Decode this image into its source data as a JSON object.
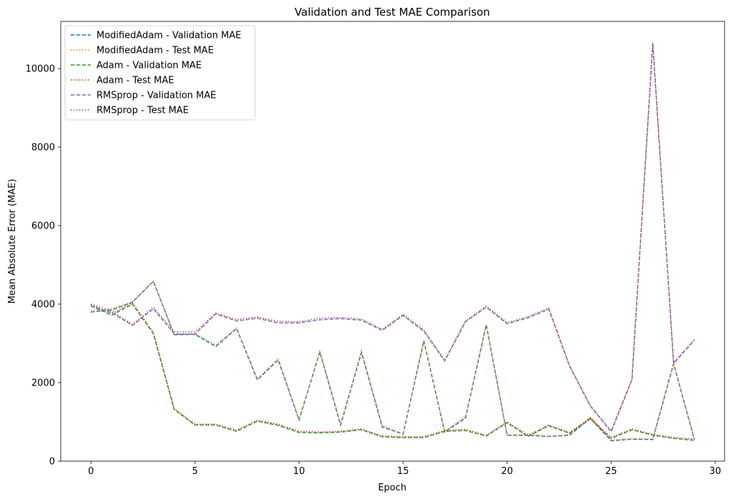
{
  "chart_data": {
    "type": "line",
    "title": "Validation and Test MAE Comparison",
    "xlabel": "Epoch",
    "ylabel": "Mean Absolute Error (MAE)",
    "xlim": [
      -1.45,
      30.45
    ],
    "ylim": [
      0,
      11200
    ],
    "xticks": [
      0,
      5,
      10,
      15,
      20,
      25,
      30
    ],
    "yticks": [
      0,
      2000,
      4000,
      6000,
      8000,
      10000
    ],
    "grid": false,
    "legend_position": "top-left",
    "x": [
      0,
      1,
      2,
      3,
      4,
      5,
      6,
      7,
      8,
      9,
      10,
      11,
      12,
      13,
      14,
      15,
      16,
      17,
      18,
      19,
      20,
      21,
      22,
      23,
      24,
      25,
      26,
      27,
      28,
      29
    ],
    "series": [
      {
        "name": "ModifiedAdam - Validation MAE",
        "color": "#1f77b4",
        "dash": "dashed",
        "values": [
          3800,
          3850,
          4050,
          4580,
          3220,
          3230,
          2920,
          3380,
          2070,
          2580,
          1050,
          2780,
          920,
          2770,
          870,
          690,
          3060,
          740,
          1100,
          3470,
          660,
          660,
          630,
          660,
          1090,
          520,
          560,
          550,
          2480,
          550
        ]
      },
      {
        "name": "ModifiedAdam - Test MAE",
        "color": "#ff7f0e",
        "dash": "dotted",
        "values": [
          3840,
          3880,
          4060,
          4590,
          3230,
          3250,
          2960,
          3400,
          2100,
          2620,
          1060,
          2800,
          960,
          2810,
          910,
          690,
          3080,
          760,
          1130,
          3480,
          670,
          680,
          640,
          680,
          1120,
          540,
          570,
          570,
          2510,
          560
        ]
      },
      {
        "name": "Adam - Validation MAE",
        "color": "#2ca02c",
        "dash": "dashed",
        "values": [
          3950,
          3720,
          4000,
          3250,
          1320,
          920,
          920,
          760,
          1020,
          910,
          730,
          720,
          740,
          800,
          620,
          600,
          600,
          760,
          780,
          640,
          980,
          630,
          900,
          710,
          1080,
          580,
          800,
          660,
          580,
          530
        ]
      },
      {
        "name": "Adam - Test MAE",
        "color": "#d62728",
        "dash": "dotted",
        "values": [
          3980,
          3760,
          4030,
          3280,
          1340,
          940,
          940,
          790,
          1040,
          940,
          760,
          740,
          760,
          820,
          640,
          620,
          620,
          780,
          810,
          660,
          1000,
          660,
          920,
          730,
          1100,
          600,
          820,
          680,
          600,
          560
        ]
      },
      {
        "name": "RMSprop - Validation MAE",
        "color": "#9467bd",
        "dash": "dashed",
        "values": [
          3950,
          3780,
          3460,
          3880,
          3250,
          3230,
          3750,
          3570,
          3640,
          3520,
          3520,
          3600,
          3630,
          3590,
          3330,
          3710,
          3310,
          2550,
          3550,
          3920,
          3500,
          3650,
          3870,
          2420,
          1400,
          750,
          2070,
          10660,
          2490,
          3080
        ]
      },
      {
        "name": "RMSprop - Test MAE",
        "color": "#8c564b",
        "dash": "dotted",
        "values": [
          4000,
          3820,
          3480,
          3920,
          3300,
          3290,
          3770,
          3610,
          3670,
          3560,
          3550,
          3640,
          3660,
          3620,
          3360,
          3740,
          3340,
          2570,
          3570,
          3950,
          3530,
          3680,
          3900,
          2440,
          1420,
          770,
          2090,
          10620,
          2510,
          3100
        ]
      }
    ]
  }
}
